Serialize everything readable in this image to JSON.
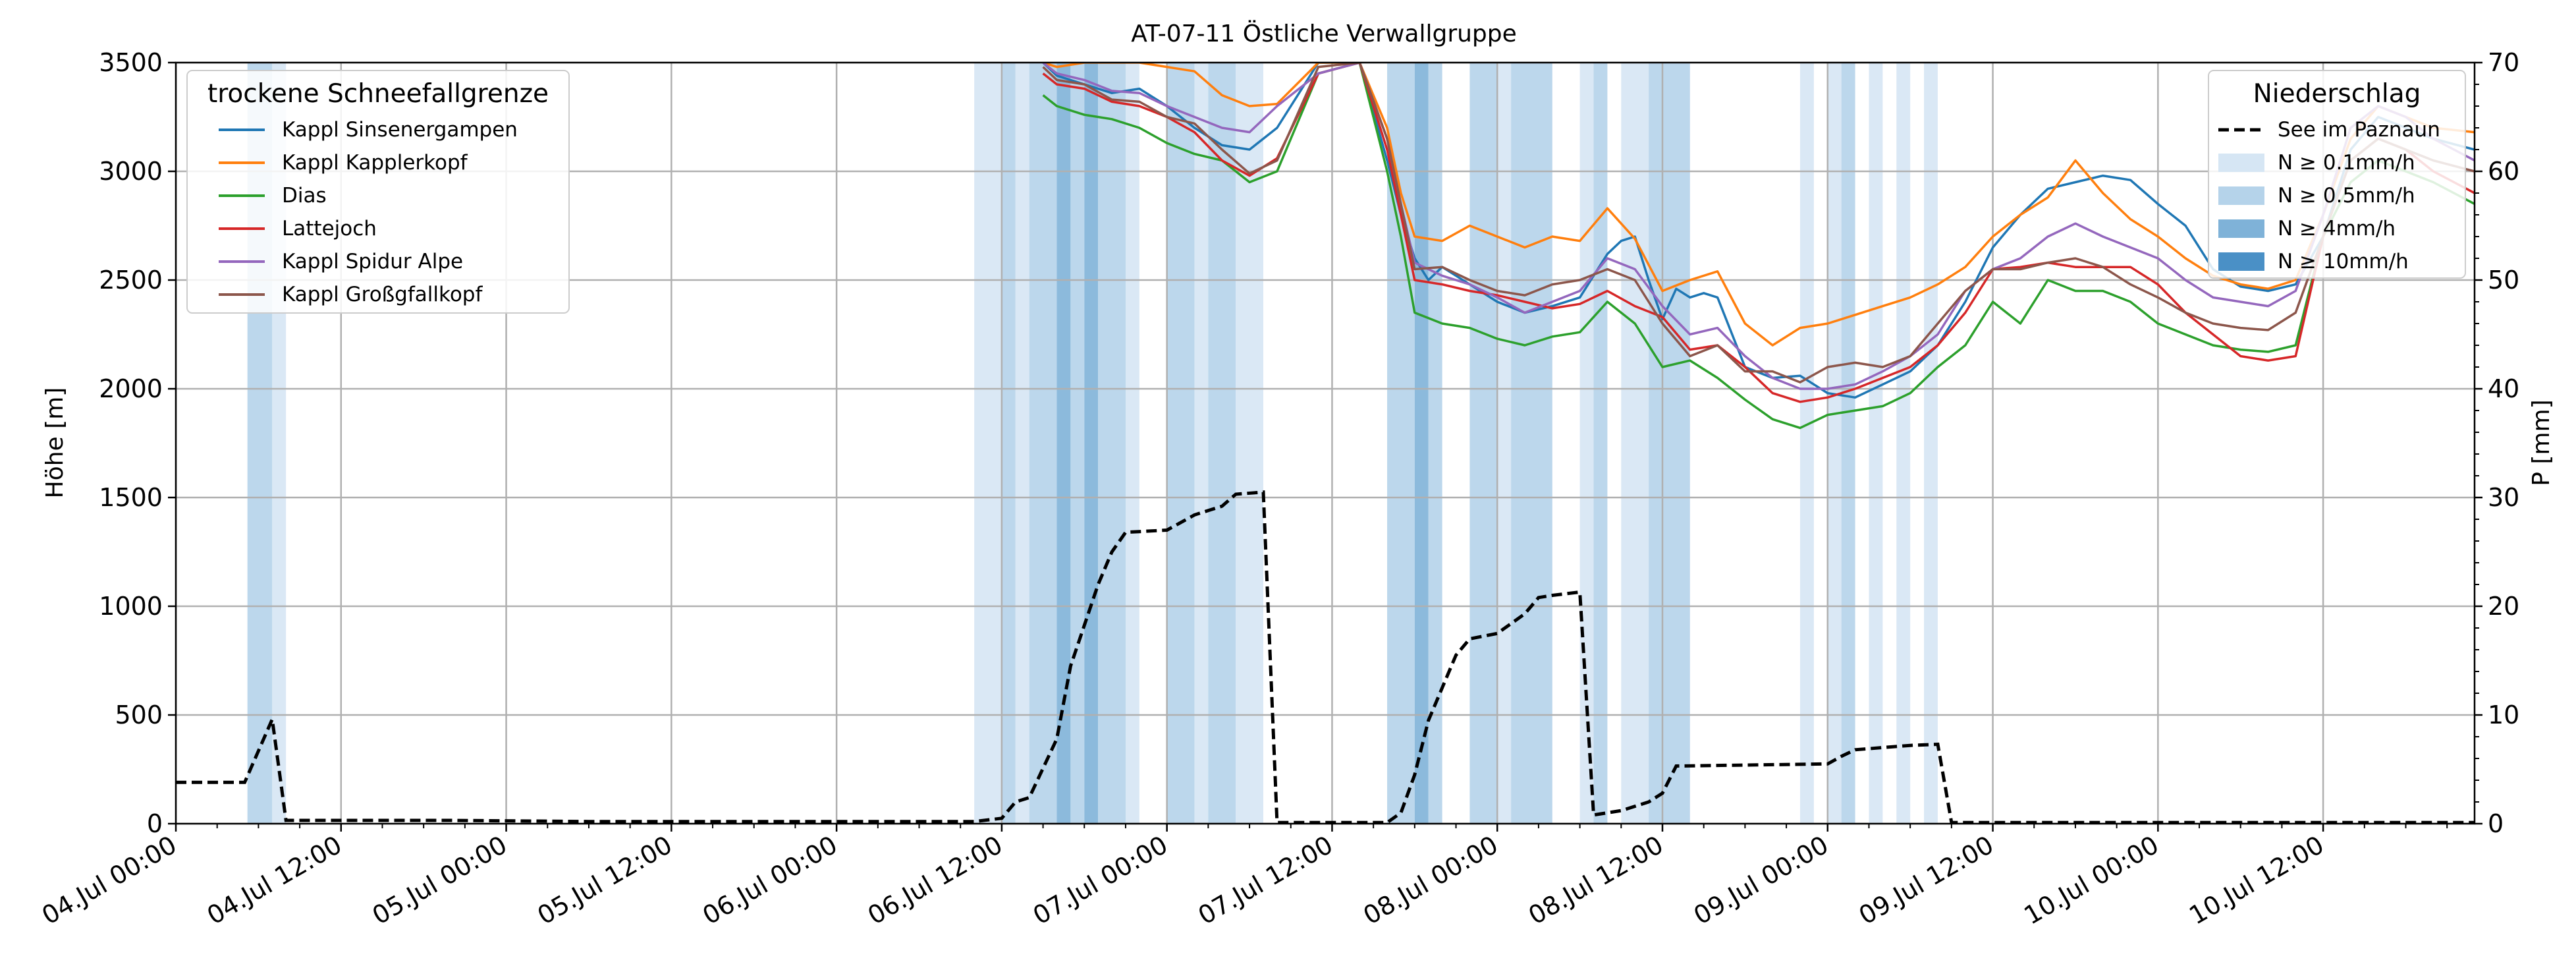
{
  "chart_data": {
    "type": "line",
    "title": "AT-07-11 Östliche Verwallgruppe",
    "ylabel": "Höhe [m]",
    "y2label": "P [mm]",
    "ylim": [
      0,
      3500
    ],
    "y2lim": [
      0,
      70
    ],
    "yticks": [
      0,
      500,
      1000,
      1500,
      2000,
      2500,
      3000,
      3500
    ],
    "y2ticks": [
      0,
      10,
      20,
      30,
      40,
      50,
      60,
      70
    ],
    "x_unit": "hours since 04.Jul 00:00",
    "xlim": [
      0,
      167
    ],
    "xticks": [
      {
        "x": 0,
        "label": "04.Jul 00:00"
      },
      {
        "x": 12,
        "label": "04.Jul 12:00"
      },
      {
        "x": 24,
        "label": "05.Jul 00:00"
      },
      {
        "x": 36,
        "label": "05.Jul 12:00"
      },
      {
        "x": 48,
        "label": "06.Jul 00:00"
      },
      {
        "x": 60,
        "label": "06.Jul 12:00"
      },
      {
        "x": 72,
        "label": "07.Jul 00:00"
      },
      {
        "x": 84,
        "label": "07.Jul 12:00"
      },
      {
        "x": 96,
        "label": "08.Jul 00:00"
      },
      {
        "x": 108,
        "label": "08.Jul 12:00"
      },
      {
        "x": 120,
        "label": "09.Jul 00:00"
      },
      {
        "x": 132,
        "label": "09.Jul 12:00"
      },
      {
        "x": 144,
        "label": "10.Jul 00:00"
      },
      {
        "x": 156,
        "label": "10.Jul 12:00"
      }
    ],
    "grid": true,
    "legend_snow": {
      "title": "trockene Schneefallgrenze",
      "placement": "upper-left"
    },
    "legend_precip": {
      "title": "Niederschlag",
      "placement": "upper-right",
      "line_label": "See im Paznaun",
      "bands": [
        {
          "label": "N ≥ 0.1mm/h",
          "color": "#d6e6f4"
        },
        {
          "label": "N ≥ 0.5mm/h",
          "color": "#b5d3ea"
        },
        {
          "label": "N ≥ 4mm/h",
          "color": "#7fb2d8"
        },
        {
          "label": "N ≥ 10mm/h",
          "color": "#4a90c6"
        }
      ]
    },
    "precip_bands": [
      {
        "x0": 5.2,
        "x1": 7.0,
        "level": 1
      },
      {
        "x0": 7.0,
        "x1": 8.0,
        "level": 0
      },
      {
        "x0": 58.0,
        "x1": 60.0,
        "level": 0
      },
      {
        "x0": 60.0,
        "x1": 61.0,
        "level": 1
      },
      {
        "x0": 61.0,
        "x1": 62.0,
        "level": 0
      },
      {
        "x0": 62.0,
        "x1": 64.0,
        "level": 1
      },
      {
        "x0": 64.0,
        "x1": 65.0,
        "level": 2
      },
      {
        "x0": 65.0,
        "x1": 66.0,
        "level": 1
      },
      {
        "x0": 66.0,
        "x1": 67.0,
        "level": 2
      },
      {
        "x0": 67.0,
        "x1": 69.0,
        "level": 1
      },
      {
        "x0": 69.0,
        "x1": 70.0,
        "level": 0
      },
      {
        "x0": 72.0,
        "x1": 74.0,
        "level": 1
      },
      {
        "x0": 74.0,
        "x1": 75.0,
        "level": 0
      },
      {
        "x0": 75.0,
        "x1": 77.0,
        "level": 1
      },
      {
        "x0": 77.0,
        "x1": 79.0,
        "level": 0
      },
      {
        "x0": 88.0,
        "x1": 90.0,
        "level": 1
      },
      {
        "x0": 90.0,
        "x1": 91.0,
        "level": 2
      },
      {
        "x0": 91.0,
        "x1": 92.0,
        "level": 1
      },
      {
        "x0": 94.0,
        "x1": 96.0,
        "level": 1
      },
      {
        "x0": 96.0,
        "x1": 97.0,
        "level": 0
      },
      {
        "x0": 97.0,
        "x1": 100.0,
        "level": 1
      },
      {
        "x0": 102.0,
        "x1": 103.0,
        "level": 0
      },
      {
        "x0": 103.0,
        "x1": 104.0,
        "level": 1
      },
      {
        "x0": 105.0,
        "x1": 107.0,
        "level": 0
      },
      {
        "x0": 107.0,
        "x1": 108.0,
        "level": 1
      },
      {
        "x0": 108.0,
        "x1": 110.0,
        "level": 1
      },
      {
        "x0": 118.0,
        "x1": 119.0,
        "level": 0
      },
      {
        "x0": 120.0,
        "x1": 121.0,
        "level": 0
      },
      {
        "x0": 121.0,
        "x1": 122.0,
        "level": 1
      },
      {
        "x0": 123.0,
        "x1": 124.0,
        "level": 0
      },
      {
        "x0": 125.0,
        "x1": 126.0,
        "level": 0
      },
      {
        "x0": 127.0,
        "x1": 128.0,
        "level": 0
      }
    ],
    "precip_series": {
      "name": "See im Paznaun",
      "color": "#000000",
      "x": [
        0,
        5,
        7,
        8,
        20,
        30,
        58,
        60,
        61,
        62,
        64,
        65,
        67,
        68,
        69,
        72,
        74,
        75,
        76,
        77,
        79,
        80,
        88,
        89,
        90,
        91,
        92,
        93,
        94,
        96,
        98,
        99,
        100,
        102,
        103,
        104,
        105,
        107,
        108,
        109,
        120,
        121,
        122,
        124,
        126,
        128,
        129,
        167
      ],
      "values": [
        3.8,
        3.8,
        9.6,
        0.3,
        0.3,
        0.2,
        0.2,
        0.5,
        2.0,
        2.4,
        7.8,
        14.5,
        22.0,
        25.0,
        26.8,
        27.0,
        28.4,
        28.8,
        29.2,
        30.3,
        30.5,
        0.1,
        0.1,
        1.0,
        4.5,
        9.5,
        12.5,
        15.5,
        17.0,
        17.5,
        19.3,
        20.8,
        21.0,
        21.3,
        0.8,
        1.0,
        1.2,
        2.0,
        2.8,
        5.3,
        5.5,
        6.2,
        6.8,
        7.0,
        7.2,
        7.3,
        0.1,
        0.1
      ]
    },
    "series": [
      {
        "name": "Kappl Sinsenergampen",
        "color": "#1f77b4",
        "x": [
          63,
          64,
          66,
          68,
          70,
          72,
          74,
          76,
          78,
          80,
          83,
          86,
          88,
          89,
          90,
          91,
          92,
          94,
          96,
          98,
          100,
          102,
          104,
          105,
          106,
          107,
          108,
          109,
          110,
          111,
          112,
          114,
          116,
          118,
          120,
          122,
          124,
          126,
          128,
          130,
          132,
          134,
          136,
          138,
          140,
          142,
          144,
          146,
          148,
          150,
          152,
          154,
          156,
          158,
          160,
          162,
          164,
          167
        ],
        "values": [
          3500,
          3440,
          3400,
          3360,
          3380,
          3300,
          3200,
          3120,
          3100,
          3200,
          3500,
          3500,
          3050,
          2800,
          2600,
          2500,
          2560,
          2480,
          2400,
          2350,
          2380,
          2420,
          2620,
          2680,
          2700,
          2500,
          2320,
          2460,
          2420,
          2440,
          2420,
          2100,
          2050,
          2060,
          1980,
          1960,
          2020,
          2080,
          2200,
          2400,
          2650,
          2800,
          2920,
          2950,
          2980,
          2960,
          2850,
          2750,
          2550,
          2470,
          2450,
          2480,
          2700,
          3100,
          3250,
          3200,
          3150,
          3100
        ]
      },
      {
        "name": "Kappl Kapplerkopf",
        "color": "#ff7f0e",
        "x": [
          63,
          64,
          66,
          68,
          70,
          72,
          74,
          76,
          78,
          80,
          83,
          86,
          88,
          89,
          90,
          92,
          94,
          96,
          98,
          100,
          102,
          104,
          106,
          108,
          110,
          112,
          114,
          116,
          118,
          120,
          122,
          124,
          126,
          128,
          130,
          132,
          134,
          136,
          138,
          140,
          142,
          144,
          146,
          148,
          150,
          152,
          154,
          156,
          158,
          160,
          162,
          164,
          167
        ],
        "values": [
          3500,
          3480,
          3500,
          3500,
          3500,
          3480,
          3460,
          3350,
          3300,
          3310,
          3500,
          3500,
          3200,
          2900,
          2700,
          2680,
          2750,
          2700,
          2650,
          2700,
          2680,
          2830,
          2690,
          2450,
          2500,
          2540,
          2300,
          2200,
          2280,
          2300,
          2340,
          2380,
          2420,
          2480,
          2560,
          2700,
          2800,
          2880,
          3050,
          2900,
          2780,
          2700,
          2600,
          2520,
          2480,
          2460,
          2500,
          2800,
          3150,
          3300,
          3250,
          3200,
          3180
        ]
      },
      {
        "name": "Dias",
        "color": "#2ca02c",
        "x": [
          63,
          64,
          66,
          68,
          70,
          72,
          74,
          76,
          78,
          80,
          83,
          86,
          88,
          89,
          90,
          92,
          94,
          96,
          98,
          100,
          102,
          104,
          106,
          108,
          110,
          112,
          114,
          116,
          118,
          120,
          122,
          124,
          126,
          128,
          130,
          132,
          134,
          136,
          138,
          140,
          142,
          144,
          146,
          148,
          150,
          152,
          154,
          156,
          158,
          160,
          162,
          164,
          167
        ],
        "values": [
          3350,
          3300,
          3260,
          3240,
          3200,
          3130,
          3080,
          3050,
          2950,
          3000,
          3450,
          3500,
          3000,
          2700,
          2350,
          2300,
          2280,
          2230,
          2200,
          2240,
          2260,
          2400,
          2300,
          2100,
          2130,
          2050,
          1950,
          1860,
          1820,
          1880,
          1900,
          1920,
          1980,
          2100,
          2200,
          2400,
          2300,
          2500,
          2450,
          2450,
          2400,
          2300,
          2250,
          2200,
          2180,
          2170,
          2200,
          2700,
          2950,
          3050,
          3000,
          2950,
          2850
        ]
      },
      {
        "name": "Lattejoch",
        "color": "#d62728",
        "x": [
          63,
          64,
          66,
          68,
          70,
          72,
          74,
          76,
          78,
          80,
          83,
          86,
          88,
          89,
          90,
          92,
          94,
          96,
          98,
          100,
          102,
          104,
          106,
          108,
          110,
          112,
          114,
          116,
          118,
          120,
          122,
          124,
          126,
          128,
          130,
          132,
          134,
          136,
          138,
          140,
          142,
          144,
          146,
          148,
          150,
          152,
          154,
          156,
          158,
          160,
          162,
          164,
          167
        ],
        "values": [
          3450,
          3400,
          3380,
          3320,
          3300,
          3250,
          3180,
          3050,
          2980,
          3060,
          3450,
          3500,
          3100,
          2800,
          2500,
          2480,
          2450,
          2430,
          2400,
          2370,
          2390,
          2450,
          2380,
          2330,
          2180,
          2200,
          2100,
          1980,
          1940,
          1960,
          2000,
          2050,
          2100,
          2200,
          2350,
          2550,
          2560,
          2580,
          2560,
          2560,
          2560,
          2480,
          2350,
          2250,
          2150,
          2130,
          2150,
          2700,
          3050,
          3150,
          3100,
          3000,
          2900
        ]
      },
      {
        "name": "Kappl Spidur Alpe",
        "color": "#9467bd",
        "x": [
          63,
          64,
          66,
          68,
          70,
          72,
          74,
          76,
          78,
          80,
          83,
          86,
          88,
          89,
          90,
          92,
          94,
          96,
          98,
          100,
          102,
          104,
          106,
          108,
          110,
          112,
          114,
          116,
          118,
          120,
          122,
          124,
          126,
          128,
          130,
          132,
          134,
          136,
          138,
          140,
          142,
          144,
          146,
          148,
          150,
          152,
          154,
          156,
          158,
          160,
          162,
          164,
          167
        ],
        "values": [
          3500,
          3450,
          3420,
          3370,
          3360,
          3300,
          3250,
          3200,
          3180,
          3300,
          3450,
          3500,
          3150,
          2850,
          2580,
          2520,
          2480,
          2420,
          2350,
          2400,
          2450,
          2600,
          2550,
          2380,
          2250,
          2280,
          2150,
          2050,
          2000,
          2000,
          2020,
          2080,
          2150,
          2250,
          2450,
          2550,
          2600,
          2700,
          2760,
          2700,
          2650,
          2600,
          2500,
          2420,
          2400,
          2380,
          2450,
          2800,
          3200,
          3300,
          3250,
          3150,
          3050
        ]
      },
      {
        "name": "Kappl Großgfallkopf",
        "color": "#8c564b",
        "x": [
          63,
          64,
          66,
          68,
          70,
          72,
          74,
          76,
          78,
          80,
          83,
          86,
          88,
          89,
          90,
          92,
          94,
          96,
          98,
          100,
          102,
          104,
          106,
          108,
          110,
          112,
          114,
          116,
          118,
          120,
          122,
          124,
          126,
          128,
          130,
          132,
          134,
          136,
          138,
          140,
          142,
          144,
          146,
          148,
          150,
          152,
          154,
          156,
          158,
          160,
          162,
          164,
          167
        ],
        "values": [
          3480,
          3420,
          3400,
          3330,
          3320,
          3250,
          3220,
          3100,
          2990,
          3050,
          3480,
          3500,
          3150,
          2850,
          2550,
          2560,
          2500,
          2450,
          2430,
          2480,
          2500,
          2550,
          2500,
          2300,
          2150,
          2200,
          2080,
          2080,
          2030,
          2100,
          2120,
          2100,
          2150,
          2300,
          2450,
          2550,
          2550,
          2580,
          2600,
          2560,
          2480,
          2420,
          2350,
          2300,
          2280,
          2270,
          2350,
          2700,
          3050,
          3150,
          3100,
          3050,
          3000
        ]
      }
    ]
  }
}
